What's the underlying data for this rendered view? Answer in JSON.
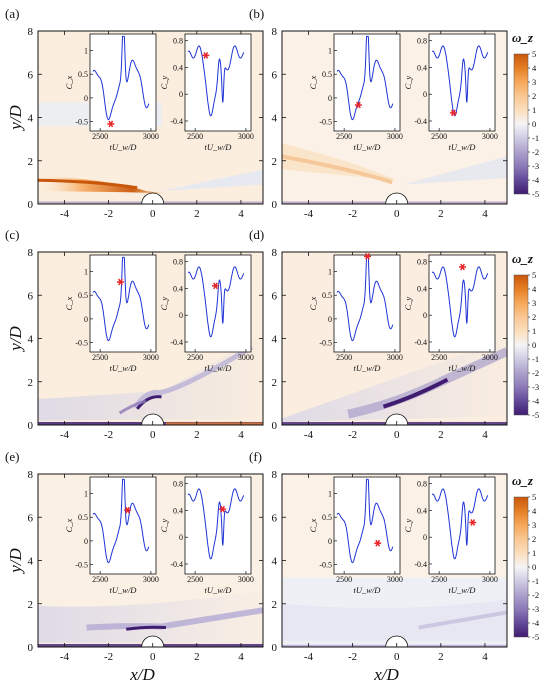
{
  "figure": {
    "y_axis_label": "y/D",
    "x_axis_label": "x/D",
    "inset_x_label": "tU_w/D",
    "inset_left_ylabel": "C_x",
    "inset_right_ylabel": "C_y"
  },
  "colorbar": {
    "title": "ω_z",
    "levels": [
      "5",
      "4",
      "3",
      "2",
      "1",
      "0",
      "-1",
      "-2",
      "-3",
      "-4",
      "-5"
    ],
    "colors": {
      "neg_strong": "#3f1c70",
      "neg_mid": "#8c7ab8",
      "neg_weak": "#d6d4e8",
      "zero": "#f5f3f5",
      "pos_weak": "#fbe3c6",
      "pos_mid": "#f6a85a",
      "pos_strong": "#c9570b"
    }
  },
  "chart_data": [
    {
      "type": "heatmap",
      "panel": "(a)",
      "xlabel": "",
      "ylabel": "y/D",
      "xlim": [
        -5.2,
        5
      ],
      "ylim": [
        0,
        8
      ],
      "xticks": [
        "-4",
        "-2",
        "0",
        "2",
        "4"
      ],
      "yticks": [
        "0",
        "2",
        "4",
        "6",
        "8"
      ],
      "insets": {
        "cx": {
          "xticks": [
            "2500",
            "3000"
          ],
          "yticks": [
            "1",
            "0.5",
            "0",
            "-0.5"
          ],
          "marker_t": 2605,
          "marker_value": -0.55
        },
        "cy": {
          "xticks": [
            "2500",
            "3000"
          ],
          "yticks": [
            "0.8",
            "0.4",
            "0",
            "-0.4"
          ],
          "marker_t": 2605,
          "marker_value": 0.58
        }
      }
    },
    {
      "type": "heatmap",
      "panel": "(b)",
      "xlabel": "",
      "ylabel": "",
      "xlim": [
        -5.2,
        5
      ],
      "ylim": [
        0,
        8
      ],
      "xticks": [
        "-4",
        "-2",
        "0",
        "2",
        "4"
      ],
      "yticks": [
        "0",
        "2",
        "4",
        "6",
        "8"
      ],
      "insets": {
        "cx": {
          "xticks": [
            "2500",
            "3000"
          ],
          "yticks": [
            "1",
            "0.5",
            "0",
            "-0.5"
          ],
          "marker_t": 2640,
          "marker_value": -0.15
        },
        "cy": {
          "xticks": [
            "2500",
            "3000"
          ],
          "yticks": [
            "0.8",
            "0.4",
            "0",
            "-0.4"
          ],
          "marker_t": 2640,
          "marker_value": -0.28
        }
      }
    },
    {
      "type": "heatmap",
      "panel": "(c)",
      "xlabel": "",
      "ylabel": "y/D",
      "xlim": [
        -5.2,
        5
      ],
      "ylim": [
        0,
        8
      ],
      "xticks": [
        "-4",
        "-2",
        "0",
        "2",
        "4"
      ],
      "yticks": [
        "0",
        "2",
        "4",
        "6",
        "8"
      ],
      "insets": {
        "cx": {
          "xticks": [
            "2500",
            "3000"
          ],
          "yticks": [
            "1",
            "0.5",
            "0",
            "-0.5"
          ],
          "marker_t": 2700,
          "marker_value": 0.78
        },
        "cy": {
          "xticks": [
            "2500",
            "3000"
          ],
          "yticks": [
            "0.8",
            "0.4",
            "0",
            "-0.4"
          ],
          "marker_t": 2700,
          "marker_value": 0.44
        }
      }
    },
    {
      "type": "heatmap",
      "panel": "(d)",
      "xlabel": "",
      "ylabel": "",
      "xlim": [
        -5.2,
        5
      ],
      "ylim": [
        0,
        8
      ],
      "xticks": [
        "-4",
        "-2",
        "0",
        "2",
        "4"
      ],
      "yticks": [
        "0",
        "2",
        "4",
        "6",
        "8"
      ],
      "insets": {
        "cx": {
          "xticks": [
            "2500",
            "3000"
          ],
          "yticks": [
            "1",
            "0.5",
            "0",
            "-0.5"
          ],
          "marker_t": 2730,
          "marker_value": 1.32
        },
        "cy": {
          "xticks": [
            "2500",
            "3000"
          ],
          "yticks": [
            "0.8",
            "0.4",
            "0",
            "-0.4"
          ],
          "marker_t": 2730,
          "marker_value": 0.72
        }
      }
    },
    {
      "type": "heatmap",
      "panel": "(e)",
      "xlabel": "x/D",
      "ylabel": "y/D",
      "xlim": [
        -5.2,
        5
      ],
      "ylim": [
        0,
        8
      ],
      "xticks": [
        "-4",
        "-2",
        "0",
        "2",
        "4"
      ],
      "yticks": [
        "0",
        "2",
        "4",
        "6",
        "8"
      ],
      "insets": {
        "cx": {
          "xticks": [
            "2500",
            "3000"
          ],
          "yticks": [
            "1",
            "0.5",
            "0",
            "-0.5"
          ],
          "marker_t": 2770,
          "marker_value": 0.65
        },
        "cy": {
          "xticks": [
            "2500",
            "3000"
          ],
          "yticks": [
            "0.8",
            "0.4",
            "0",
            "-0.4"
          ],
          "marker_t": 2770,
          "marker_value": 0.42
        }
      }
    },
    {
      "type": "heatmap",
      "panel": "(f)",
      "xlabel": "x/D",
      "ylabel": "",
      "xlim": [
        -5.2,
        5
      ],
      "ylim": [
        0,
        8
      ],
      "xticks": [
        "-4",
        "-2",
        "0",
        "2",
        "4"
      ],
      "yticks": [
        "0",
        "2",
        "4",
        "6",
        "8"
      ],
      "insets": {
        "cx": {
          "xticks": [
            "2500",
            "3000"
          ],
          "yticks": [
            "1",
            "0.5",
            "0",
            "-0.5"
          ],
          "marker_t": 2830,
          "marker_value": -0.05
        },
        "cy": {
          "xticks": [
            "2500",
            "3000"
          ],
          "yticks": [
            "0.8",
            "0.4",
            "0",
            "-0.4"
          ],
          "marker_t": 2830,
          "marker_value": 0.22
        }
      }
    }
  ]
}
